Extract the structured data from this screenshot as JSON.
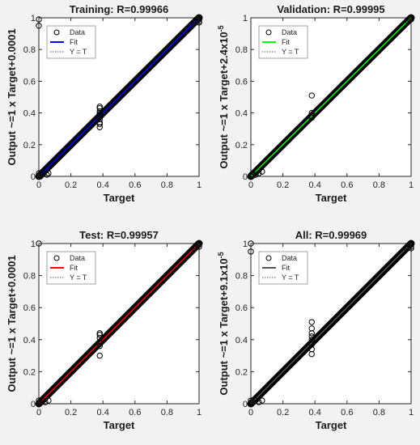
{
  "figure": {
    "background": "#f2f2f2",
    "axes_background": "#ffffff"
  },
  "chart_data": [
    {
      "type": "scatter",
      "title": "Training: R=0.99966",
      "xlabel": "Target",
      "ylabel": "Output ~=1 x Target+0.0001",
      "xlim": [
        0,
        1
      ],
      "ylim": [
        0,
        1
      ],
      "xticks": [
        "0",
        "0.2",
        "0.4",
        "0.6",
        "0.8",
        "1"
      ],
      "yticks": [
        "0",
        "0.2",
        "0.4",
        "0.6",
        "0.8",
        "1"
      ],
      "grid": false,
      "legend_position": "top-left",
      "legend": [
        {
          "label": "Data",
          "marker": "circle",
          "color": "#000000"
        },
        {
          "label": "Fit",
          "line": "solid",
          "color": "#0000ff"
        },
        {
          "label": "Y = T",
          "line": "dotted",
          "color": "#555555"
        }
      ],
      "fit_line": {
        "x": [
          0,
          1
        ],
        "y": [
          0.0001,
          1.0001
        ],
        "color": "#0000ff"
      },
      "identity_line": {
        "x": [
          0,
          1
        ],
        "y": [
          0,
          1
        ]
      },
      "points": [
        [
          0,
          0.99
        ],
        [
          0,
          0.95
        ],
        [
          0,
          0.02
        ],
        [
          0.01,
          0.0
        ],
        [
          0.02,
          0.01
        ],
        [
          0.03,
          0.02
        ],
        [
          0.05,
          0.01
        ],
        [
          0.06,
          0.02
        ],
        [
          0.38,
          0.44
        ],
        [
          0.38,
          0.43
        ],
        [
          0.38,
          0.41
        ],
        [
          0.38,
          0.4
        ],
        [
          0.38,
          0.39
        ],
        [
          0.38,
          0.36
        ],
        [
          0.38,
          0.34
        ],
        [
          0.38,
          0.33
        ],
        [
          0.38,
          0.31
        ],
        [
          0.97,
          0.97
        ],
        [
          0.98,
          0.98
        ],
        [
          0.99,
          0.99
        ],
        [
          1,
          0.98
        ],
        [
          1,
          0.97
        ]
      ]
    },
    {
      "type": "scatter",
      "title": "Validation: R=0.99995",
      "xlabel": "Target",
      "ylabel": "Output ~=1 x Target+2.4x10",
      "ylabel_exponent": "-5",
      "xlim": [
        0,
        1
      ],
      "ylim": [
        0,
        1
      ],
      "xticks": [
        "0",
        "0.2",
        "0.4",
        "0.6",
        "0.8",
        "1"
      ],
      "yticks": [
        "0",
        "0.2",
        "0.4",
        "0.6",
        "0.8",
        "1"
      ],
      "grid": false,
      "legend_position": "top-left",
      "legend": [
        {
          "label": "Data",
          "marker": "circle",
          "color": "#000000"
        },
        {
          "label": "Fit",
          "line": "solid",
          "color": "#00ff00"
        },
        {
          "label": "Y = T",
          "line": "dotted",
          "color": "#555555"
        }
      ],
      "fit_line": {
        "x": [
          0,
          1
        ],
        "y": [
          2.4e-05,
          1.000024
        ],
        "color": "#00ff00"
      },
      "identity_line": {
        "x": [
          0,
          1
        ],
        "y": [
          0,
          1
        ]
      },
      "points": [
        [
          0,
          0.0
        ],
        [
          0.01,
          0.01
        ],
        [
          0.03,
          0.01
        ],
        [
          0.05,
          0.02
        ],
        [
          0.07,
          0.03
        ],
        [
          0.38,
          0.51
        ],
        [
          0.38,
          0.4
        ],
        [
          0.38,
          0.38
        ],
        [
          0.38,
          0.37
        ],
        [
          0.98,
          0.98
        ],
        [
          0.99,
          0.99
        ],
        [
          1,
          0.99
        ]
      ]
    },
    {
      "type": "scatter",
      "title": "Test: R=0.99957",
      "xlabel": "Target",
      "ylabel": "Output ~=1 x Target+0.0001",
      "xlim": [
        0,
        1
      ],
      "ylim": [
        0,
        1
      ],
      "xticks": [
        "0",
        "0.2",
        "0.4",
        "0.6",
        "0.8",
        "1"
      ],
      "yticks": [
        "0",
        "0.2",
        "0.4",
        "0.6",
        "0.8",
        "1"
      ],
      "grid": false,
      "legend_position": "top-left",
      "legend": [
        {
          "label": "Data",
          "marker": "circle",
          "color": "#000000"
        },
        {
          "label": "Fit",
          "line": "solid",
          "color": "#ff0000"
        },
        {
          "label": "Y = T",
          "line": "dotted",
          "color": "#555555"
        }
      ],
      "fit_line": {
        "x": [
          0,
          1
        ],
        "y": [
          0.0001,
          1.0001
        ],
        "color": "#ff0000"
      },
      "identity_line": {
        "x": [
          0,
          1
        ],
        "y": [
          0,
          1
        ]
      },
      "points": [
        [
          0,
          1.0
        ],
        [
          0,
          0.02
        ],
        [
          0.01,
          0.01
        ],
        [
          0.02,
          0.02
        ],
        [
          0.04,
          0.01
        ],
        [
          0.06,
          0.02
        ],
        [
          0.38,
          0.44
        ],
        [
          0.38,
          0.43
        ],
        [
          0.38,
          0.41
        ],
        [
          0.38,
          0.38
        ],
        [
          0.38,
          0.36
        ],
        [
          0.38,
          0.3
        ],
        [
          0.97,
          0.97
        ],
        [
          0.98,
          0.98
        ],
        [
          0.99,
          0.99
        ],
        [
          1,
          0.98
        ]
      ]
    },
    {
      "type": "scatter",
      "title": "All: R=0.99969",
      "xlabel": "Target",
      "ylabel": "Output ~=1 x Target+9.1x10",
      "ylabel_exponent": "-5",
      "xlim": [
        0,
        1
      ],
      "ylim": [
        0,
        1
      ],
      "xticks": [
        "0",
        "0.2",
        "0.4",
        "0.6",
        "0.8",
        "1"
      ],
      "yticks": [
        "0",
        "0.2",
        "0.4",
        "0.6",
        "0.8",
        "1"
      ],
      "grid": false,
      "legend_position": "top-left",
      "legend": [
        {
          "label": "Data",
          "marker": "circle",
          "color": "#000000"
        },
        {
          "label": "Fit",
          "line": "solid",
          "color": "#555555"
        },
        {
          "label": "Y = T",
          "line": "dotted",
          "color": "#555555"
        }
      ],
      "fit_line": {
        "x": [
          0,
          1
        ],
        "y": [
          9.1e-05,
          1.000091
        ],
        "color": "#555555"
      },
      "identity_line": {
        "x": [
          0,
          1
        ],
        "y": [
          0,
          1
        ]
      },
      "points": [
        [
          0,
          1.0
        ],
        [
          0,
          0.95
        ],
        [
          0,
          0.02
        ],
        [
          0.01,
          0.01
        ],
        [
          0.03,
          0.02
        ],
        [
          0.05,
          0.01
        ],
        [
          0.07,
          0.02
        ],
        [
          0.38,
          0.51
        ],
        [
          0.38,
          0.47
        ],
        [
          0.38,
          0.44
        ],
        [
          0.38,
          0.42
        ],
        [
          0.38,
          0.4
        ],
        [
          0.38,
          0.37
        ],
        [
          0.38,
          0.34
        ],
        [
          0.38,
          0.31
        ],
        [
          0.97,
          0.97
        ],
        [
          0.98,
          0.98
        ],
        [
          0.99,
          0.99
        ],
        [
          1,
          0.98
        ],
        [
          1,
          0.97
        ]
      ]
    }
  ]
}
